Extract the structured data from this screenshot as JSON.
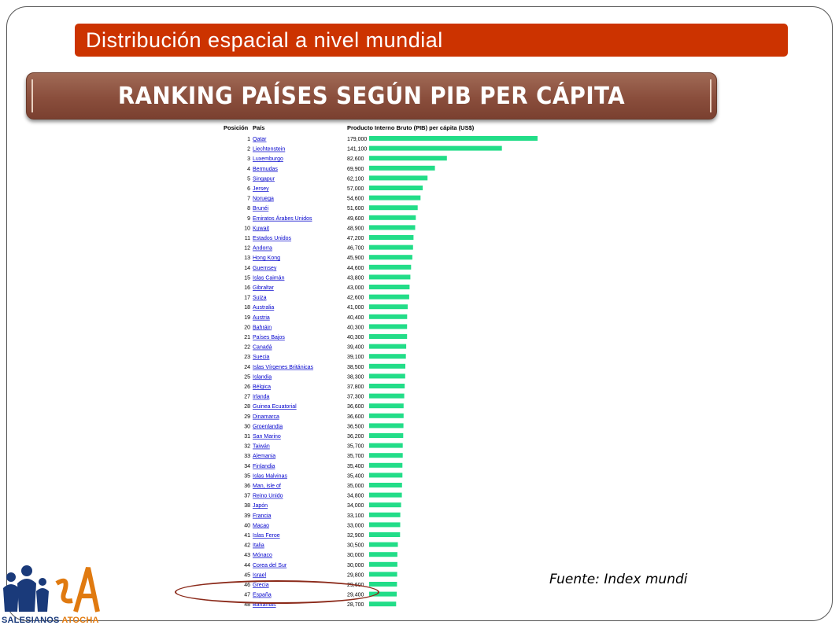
{
  "slide": {
    "title": "Distribución espacial a nivel mundial",
    "banner": "RANKING PAÍSES SEGÚN PIB PER CÁPITA",
    "source": "Fuente: Index mundi",
    "logo": {
      "part1": "SALESIANOS",
      "part2": "ATOCHA"
    }
  },
  "colors": {
    "title_bg": "#cc3300",
    "banner": "#8a4e3c",
    "bar": "#22dd88",
    "link": "#0000cc",
    "highlight": "#8b2a1a"
  },
  "chart_data": {
    "type": "bar",
    "orientation": "horizontal",
    "columns": {
      "position": "Posición",
      "country": "País",
      "value": "Producto Interno Bruto (PIB) per cápita (US$)"
    },
    "categories": [
      "Qatar",
      "Liechtenstein",
      "Luxemburgo",
      "Bermudas",
      "Singapur",
      "Jersey",
      "Noruega",
      "Brunéi",
      "Emiratos Árabes Unidos",
      "Kuwait",
      "Estados Unidos",
      "Andorra",
      "Hong Kong",
      "Guernsey",
      "Islas Caimán",
      "Gibraltar",
      "Suiza",
      "Australia",
      "Austria",
      "Bahráin",
      "Países Bajos",
      "Canadá",
      "Suecia",
      "Islas Vírgenes Británicas",
      "Islandia",
      "Bélgica",
      "Irlanda",
      "Guinea Ecuatorial",
      "Dinamarca",
      "Groenlandia",
      "San Marino",
      "Taiwán",
      "Alemania",
      "Finlandia",
      "Islas Malvinas",
      "Man, isle of",
      "Reino Unido",
      "Japón",
      "Francia",
      "Macao",
      "Islas Feroe",
      "Italia",
      "Mónaco",
      "Corea del Sur",
      "Israel",
      "Grecia",
      "España",
      "Bahamas"
    ],
    "positions": [
      1,
      2,
      3,
      4,
      5,
      6,
      7,
      8,
      9,
      10,
      11,
      12,
      13,
      14,
      15,
      16,
      17,
      18,
      19,
      20,
      21,
      22,
      23,
      24,
      25,
      26,
      27,
      28,
      29,
      30,
      31,
      32,
      33,
      34,
      35,
      36,
      37,
      38,
      39,
      40,
      41,
      42,
      43,
      44,
      45,
      46,
      47,
      48
    ],
    "values": [
      179000,
      141100,
      82600,
      69900,
      62100,
      57000,
      54600,
      51600,
      49600,
      48900,
      47200,
      46700,
      45900,
      44600,
      43800,
      43000,
      42600,
      41000,
      40400,
      40300,
      40300,
      39400,
      39100,
      38500,
      38300,
      37800,
      37300,
      36600,
      36600,
      36500,
      36200,
      35700,
      35700,
      35400,
      35400,
      35000,
      34800,
      34000,
      33100,
      33000,
      32900,
      30500,
      30000,
      30000,
      29800,
      29600,
      29400,
      28700
    ],
    "value_labels": [
      "179,000",
      "141,100",
      "82,600",
      "69,900",
      "62,100",
      "57,000",
      "54,600",
      "51,600",
      "49,600",
      "48,900",
      "47,200",
      "46,700",
      "45,900",
      "44,600",
      "43,800",
      "43,000",
      "42,600",
      "41,000",
      "40,400",
      "40,300",
      "40,300",
      "39,400",
      "39,100",
      "38,500",
      "38,300",
      "37,800",
      "37,300",
      "36,600",
      "36,600",
      "36,500",
      "36,200",
      "35,700",
      "35,700",
      "35,400",
      "35,400",
      "35,000",
      "34,800",
      "34,000",
      "33,100",
      "33,000",
      "32,900",
      "30,500",
      "30,000",
      "30,000",
      "29,800",
      "29,600",
      "29,400",
      "28,700"
    ],
    "highlighted": [
      "Grecia",
      "España"
    ]
  }
}
